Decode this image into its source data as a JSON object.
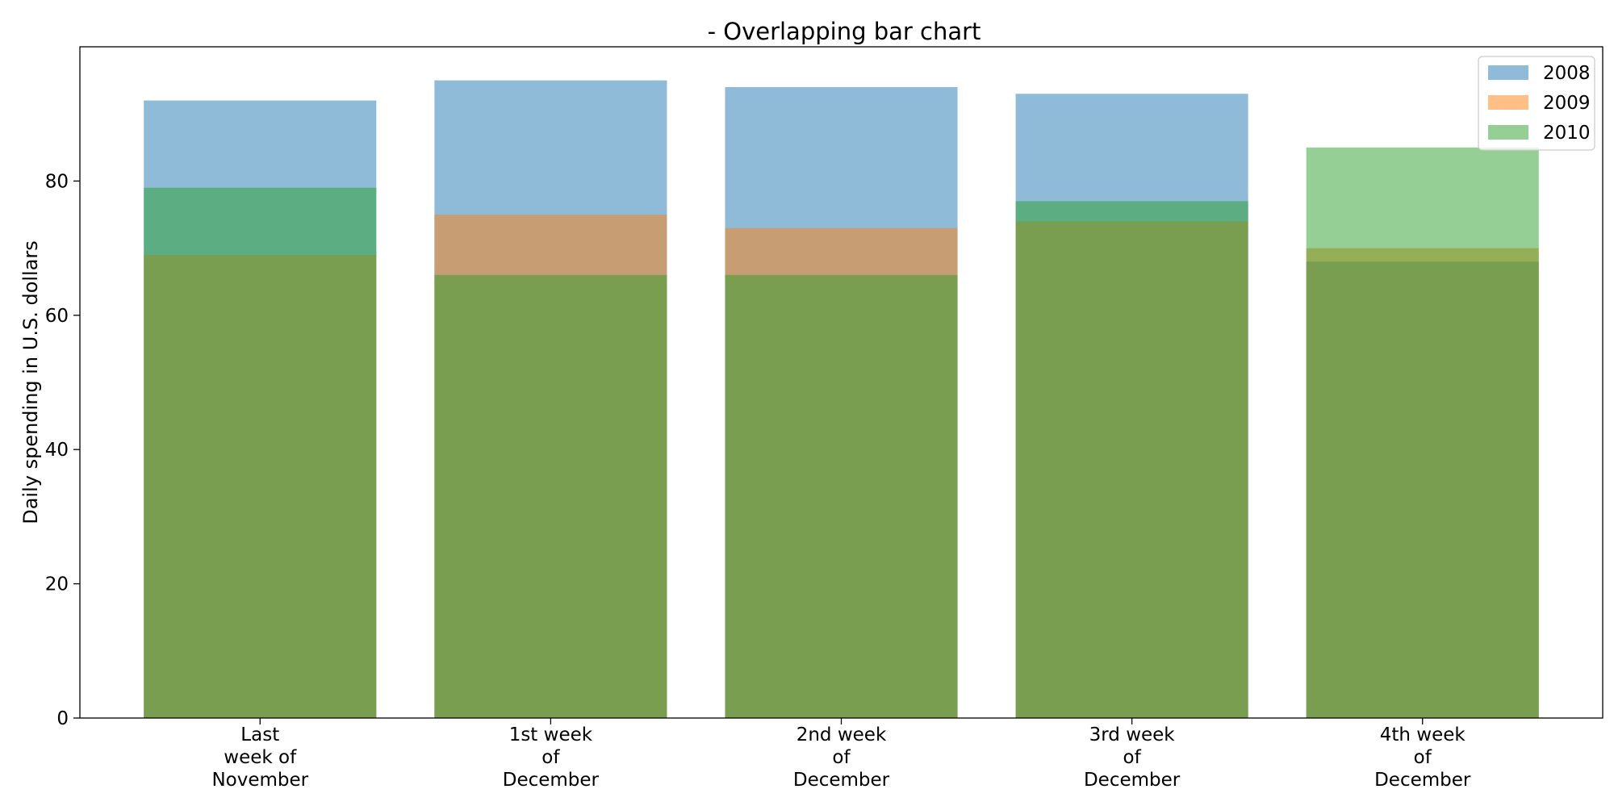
{
  "chart_data": {
    "type": "bar",
    "title": "- Overlapping bar chart",
    "xlabel": "",
    "ylabel": "Daily spending in U.S. dollars",
    "ylim": [
      0,
      100
    ],
    "yticks": [
      0,
      20,
      40,
      60,
      80
    ],
    "grid": false,
    "legend_position": "top-right",
    "categories": [
      [
        "Last",
        "week of",
        "November"
      ],
      [
        "1st week",
        "of",
        "December"
      ],
      [
        "2nd week",
        "of",
        "December"
      ],
      [
        "3rd week",
        "of",
        "December"
      ],
      [
        "4th week",
        "of",
        "December"
      ]
    ],
    "series": [
      {
        "name": "2008",
        "color": "#1f77b4",
        "values": [
          92,
          95,
          94,
          93,
          68
        ]
      },
      {
        "name": "2009",
        "color": "#ff7f0e",
        "values": [
          69,
          75,
          73,
          74,
          70
        ]
      },
      {
        "name": "2010",
        "color": "#2ca02c",
        "values": [
          79,
          66,
          66,
          77,
          85
        ]
      }
    ],
    "bar_opacity": 0.5
  }
}
